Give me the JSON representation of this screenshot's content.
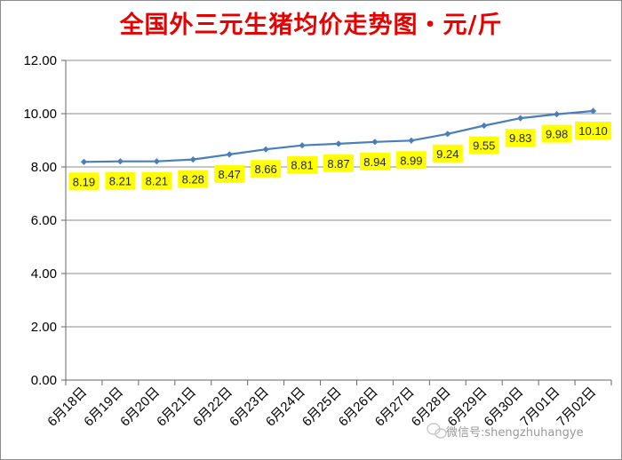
{
  "chart_data": {
    "type": "line",
    "title": "全国外三元生猪均价走势图・元/斤",
    "xlabel": "",
    "ylabel": "",
    "categories": [
      "6月18日",
      "6月19日",
      "6月20日",
      "6月21日",
      "6月22日",
      "6月23日",
      "6月24日",
      "6月25日",
      "6月26日",
      "6月27日",
      "6月28日",
      "6月29日",
      "6月30日",
      "7月01日",
      "7月02日"
    ],
    "series": [
      {
        "values": [
          8.19,
          8.21,
          8.21,
          8.28,
          8.47,
          8.66,
          8.81,
          8.87,
          8.94,
          8.99,
          9.24,
          9.55,
          9.83,
          9.98,
          10.1
        ],
        "labels": [
          "8.19",
          "8.21",
          "8.21",
          "8.28",
          "8.47",
          "8.66",
          "8.81",
          "8.87",
          "8.94",
          "8.99",
          "9.24",
          "9.55",
          "9.83",
          "9.98",
          "10.10"
        ]
      }
    ],
    "yticks": [
      "0.00",
      "2.00",
      "4.00",
      "6.00",
      "8.00",
      "10.00",
      "12.00"
    ],
    "ylim": [
      0,
      12
    ],
    "grid": true,
    "legend": "none",
    "colors": {
      "line": "#4a7ebb",
      "label_bg": "#ffff00",
      "title": "#e60000",
      "grid": "#8c8c8c"
    }
  },
  "watermark": {
    "text": "微信号:shengzhuhangye",
    "icon": "wechat-icon"
  }
}
